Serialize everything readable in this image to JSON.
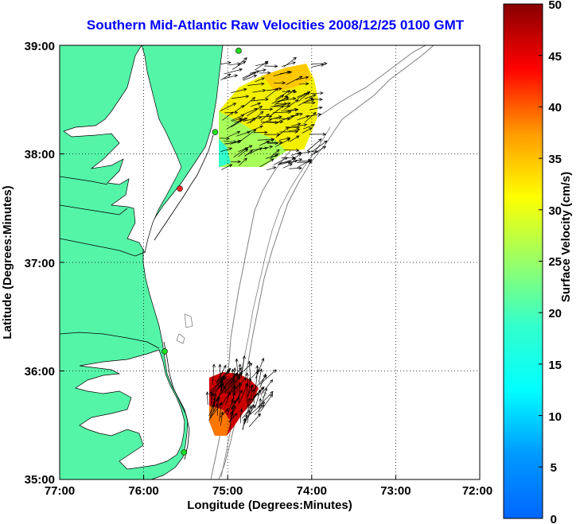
{
  "title": "Southern Mid-Atlantic Raw Velocities 2008/12/25 0100 GMT",
  "xlabel": "Longitude (Degrees:Minutes)",
  "ylabel": "Latitude (Degrees:Minutes)",
  "x_ticks": [
    "77:00",
    "76:00",
    "75:00",
    "74:00",
    "73:00",
    "72:00"
  ],
  "y_ticks": [
    "39:00",
    "38:00",
    "37:00",
    "36:00",
    "35:00"
  ],
  "colorbar": {
    "label": "Surface Velocity (cm/s)",
    "ticks": [
      "0",
      "5",
      "10",
      "15",
      "20",
      "25",
      "30",
      "35",
      "40",
      "45",
      "50"
    ],
    "range": [
      0,
      50
    ],
    "colormap": "jet"
  },
  "colors": {
    "land": "#55f5a8",
    "coast_outline": "#000000",
    "bathymetry": "#808080",
    "grid": "#000000",
    "title": "#0000ff",
    "station_active": "#22dd22",
    "station_inactive": "#ff2222"
  },
  "chart_data": {
    "type": "map",
    "xlim_lon_west": [
      77.0,
      72.0
    ],
    "ylim_lat_north": [
      35.0,
      39.0
    ],
    "grid": true,
    "stations": [
      {
        "lat": 38.95,
        "lon": 74.87,
        "status": "active"
      },
      {
        "lat": 38.2,
        "lon": 75.15,
        "status": "active"
      },
      {
        "lat": 37.68,
        "lon": 75.57,
        "status": "inactive"
      },
      {
        "lat": 36.18,
        "lon": 75.75,
        "status": "active"
      },
      {
        "lat": 35.25,
        "lon": 75.52,
        "status": "active"
      }
    ],
    "current_fields": [
      {
        "region": "northern",
        "lat_range": [
          37.85,
          38.85
        ],
        "lon_range": [
          74.0,
          75.1
        ],
        "speed_range_cm_s": [
          15,
          30
        ],
        "dominant_direction": "east-northeast"
      },
      {
        "region": "southern",
        "lat_range": [
          35.45,
          35.95
        ],
        "lon_range": [
          74.6,
          75.25
        ],
        "speed_range_cm_s": [
          35,
          50
        ],
        "dominant_direction": "north-northeast"
      }
    ]
  }
}
